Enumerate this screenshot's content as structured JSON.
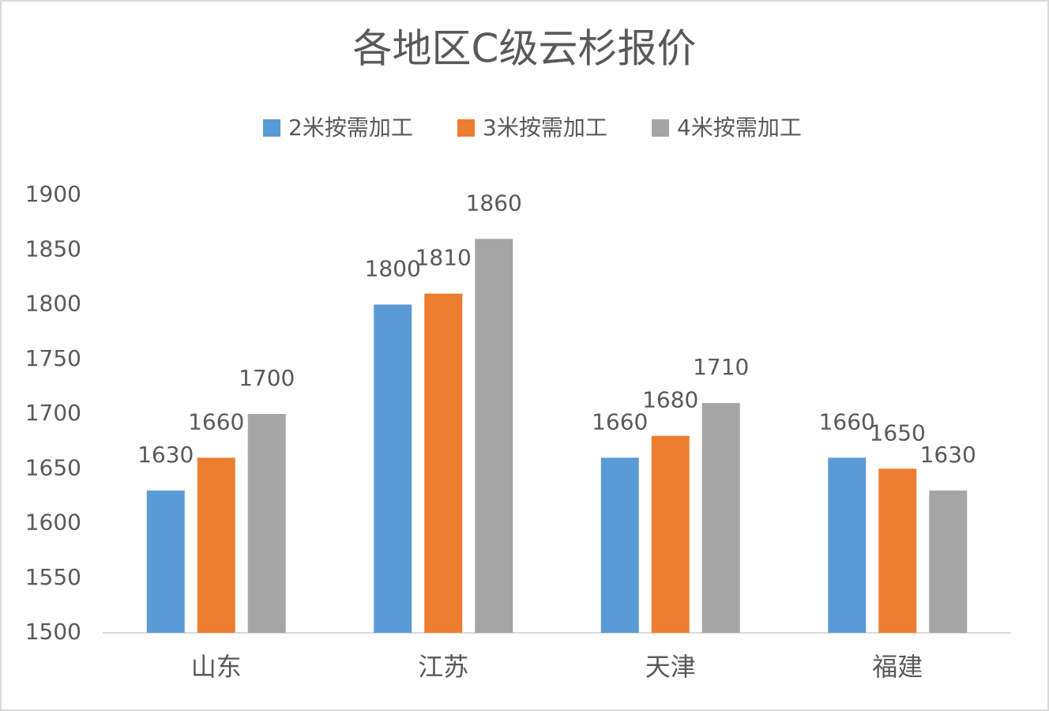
{
  "chart_data": {
    "type": "bar",
    "title": "各地区C级云杉报价",
    "categories": [
      "山东",
      "江苏",
      "天津",
      "福建"
    ],
    "series": [
      {
        "name": "2米按需加工",
        "color": "#5b9bd5",
        "values": [
          1630,
          1800,
          1660,
          1660
        ]
      },
      {
        "name": "3米按需加工",
        "color": "#ed7d31",
        "values": [
          1660,
          1810,
          1680,
          1650
        ]
      },
      {
        "name": "4米按需加工",
        "color": "#a5a5a5",
        "values": [
          1700,
          1860,
          1710,
          1630
        ]
      }
    ],
    "ylim": [
      1500,
      1900
    ],
    "yticks": [
      1500,
      1550,
      1600,
      1650,
      1700,
      1750,
      1800,
      1850,
      1900
    ],
    "grid": false,
    "legend": "top"
  }
}
